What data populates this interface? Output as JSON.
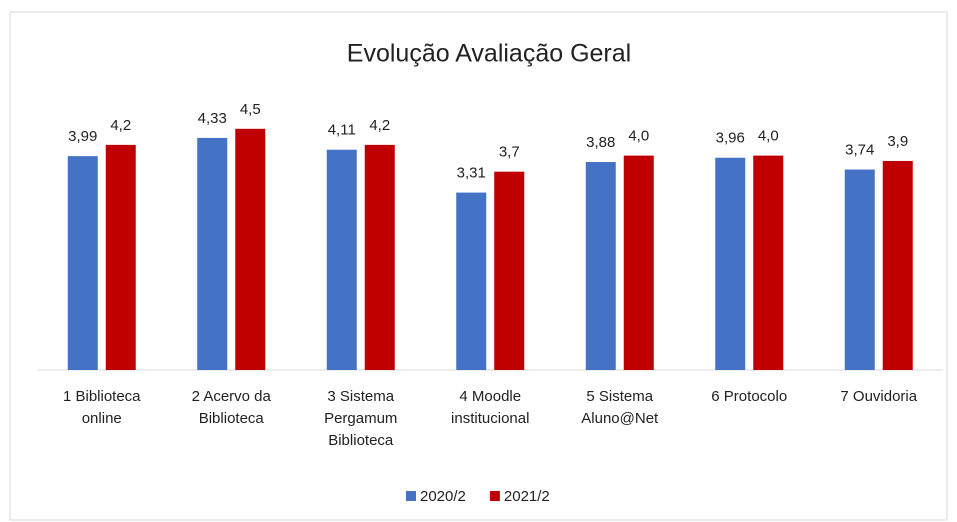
{
  "chart_data": {
    "type": "bar",
    "title": "Evolução Avaliação Geral",
    "categories": [
      "1 Biblioteca online",
      "2 Acervo da Biblioteca",
      "3 Sistema Pergamum Biblioteca",
      "4 Moodle institucional",
      "5 Sistema Aluno@Net",
      "6 Protocolo",
      "7 Ouvidoria"
    ],
    "series": [
      {
        "name": "2020/2",
        "color": "#4472c4",
        "values": [
          3.99,
          4.33,
          4.11,
          3.31,
          3.88,
          3.96,
          3.74
        ],
        "value_labels": [
          "3,99",
          "4,33",
          "4,11",
          "3,31",
          "3,88",
          "3,96",
          "3,74"
        ]
      },
      {
        "name": "2021/2",
        "color": "#c00000",
        "values": [
          4.2,
          4.5,
          4.2,
          3.7,
          4.0,
          4.0,
          3.9
        ],
        "value_labels": [
          "4,2",
          "4,5",
          "4,2",
          "3,7",
          "4,0",
          "4,0",
          "3,9"
        ]
      }
    ],
    "ylim": [
      0,
      5
    ],
    "legend": "bottom"
  }
}
